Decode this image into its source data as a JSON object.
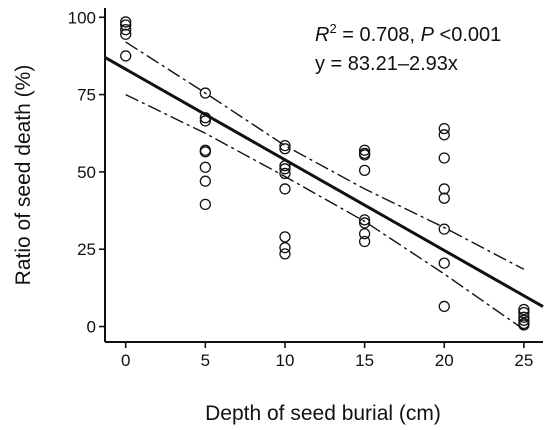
{
  "chart_data": {
    "type": "scatter",
    "xlabel": "Depth of seed burial (cm)",
    "ylabel": "Ratio of seed death (%)",
    "xlim": [
      -1.3,
      26.2
    ],
    "ylim": [
      -5,
      103
    ],
    "xticks": [
      0,
      5,
      10,
      15,
      20,
      25
    ],
    "yticks": [
      0,
      25,
      50,
      75,
      100
    ],
    "grid": false,
    "annotation": {
      "r_symbol": "R",
      "r_exp": "2",
      "r_rest": " = 0.708, ",
      "p_symbol": "P",
      "p_rest": " <0.001",
      "equation": "y = 83.21–2.93x"
    },
    "series": [
      {
        "type": "scatter",
        "points": [
          [
            0,
            98.5
          ],
          [
            0,
            97.5
          ],
          [
            0,
            96
          ],
          [
            0,
            94.5
          ],
          [
            0,
            87.5
          ],
          [
            5,
            75.5
          ],
          [
            5,
            67.5
          ],
          [
            5,
            66.5
          ],
          [
            5,
            57
          ],
          [
            5,
            56.5
          ],
          [
            5,
            51.5
          ],
          [
            5,
            47
          ],
          [
            5,
            39.5
          ],
          [
            10,
            58.5
          ],
          [
            10,
            57.5
          ],
          [
            10,
            52
          ],
          [
            10,
            51
          ],
          [
            10,
            49.5
          ],
          [
            10,
            44.5
          ],
          [
            10,
            29
          ],
          [
            10,
            25.5
          ],
          [
            10,
            23.5
          ],
          [
            15,
            57
          ],
          [
            15,
            56
          ],
          [
            15,
            55.5
          ],
          [
            15,
            50.5
          ],
          [
            15,
            34.5
          ],
          [
            15,
            33.5
          ],
          [
            15,
            30
          ],
          [
            15,
            27.5
          ],
          [
            20,
            64
          ],
          [
            20,
            62
          ],
          [
            20,
            54.5
          ],
          [
            20,
            44.5
          ],
          [
            20,
            41.5
          ],
          [
            20,
            31.5
          ],
          [
            20,
            20.5
          ],
          [
            20,
            6.5
          ],
          [
            25,
            5.5
          ],
          [
            25,
            4.5
          ],
          [
            25,
            3
          ],
          [
            25,
            2
          ],
          [
            25,
            1
          ],
          [
            25,
            0.5
          ]
        ]
      },
      {
        "type": "line",
        "style": "solid",
        "points": [
          [
            -1.3,
            87.02
          ],
          [
            26.2,
            6.44
          ]
        ]
      },
      {
        "type": "line",
        "style": "dashdot",
        "points": [
          [
            0,
            92.0
          ],
          [
            5,
            75.5
          ],
          [
            10,
            58.5
          ],
          [
            15,
            44.5
          ],
          [
            20,
            32.0
          ],
          [
            25,
            18.5
          ]
        ]
      },
      {
        "type": "line",
        "style": "dashdot",
        "points": [
          [
            0,
            75.0
          ],
          [
            5,
            62.5
          ],
          [
            10,
            48.5
          ],
          [
            15,
            34.0
          ],
          [
            20,
            17.0
          ],
          [
            25,
            -1.0
          ]
        ]
      }
    ]
  }
}
